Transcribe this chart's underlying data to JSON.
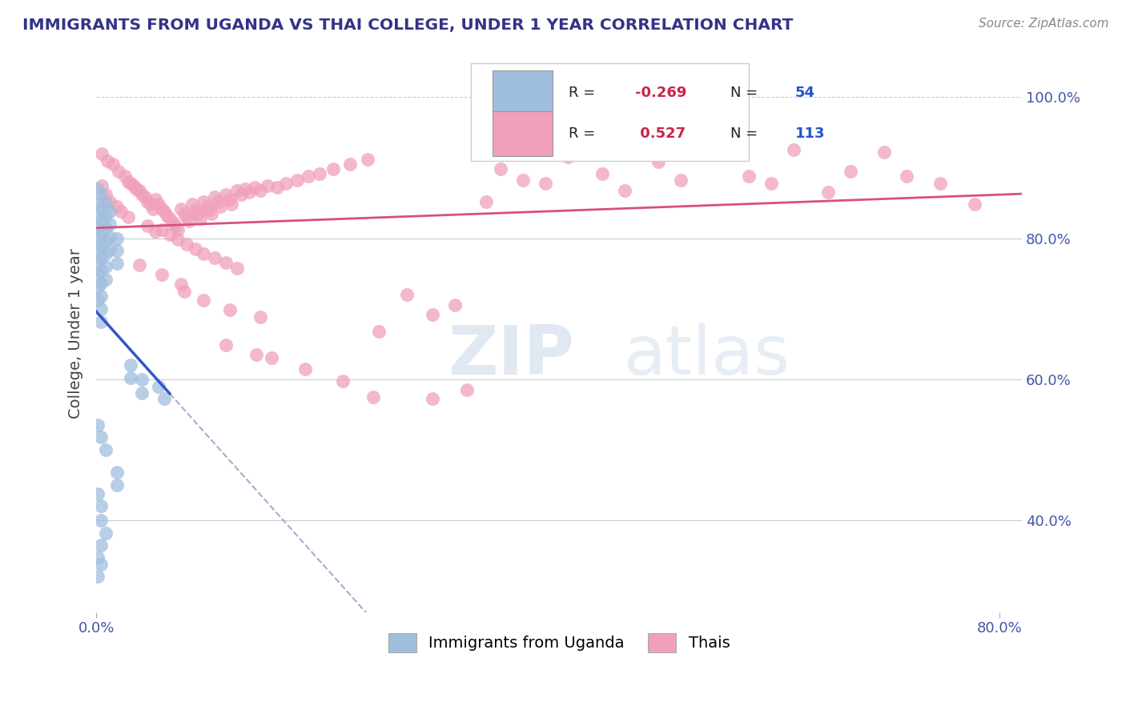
{
  "title": "IMMIGRANTS FROM UGANDA VS THAI COLLEGE, UNDER 1 YEAR CORRELATION CHART",
  "source": "Source: ZipAtlas.com",
  "ylabel": "College, Under 1 year",
  "color_uganda": "#a0bede",
  "color_thai": "#f0a0bc",
  "color_uganda_line": "#3355cc",
  "color_thai_line": "#d85080",
  "color_dashed": "#aaaacc",
  "background_color": "#ffffff",
  "xlim": [
    0.0,
    0.82
  ],
  "ylim": [
    0.27,
    1.06
  ],
  "r_uganda": -0.269,
  "n_uganda": 54,
  "r_thai": 0.527,
  "n_thai": 113,
  "legend_labels": [
    "Immigrants from Uganda",
    "Thais"
  ],
  "uganda_points": [
    [
      0.001,
      0.87
    ],
    [
      0.001,
      0.85
    ],
    [
      0.001,
      0.832
    ],
    [
      0.001,
      0.815
    ],
    [
      0.001,
      0.798
    ],
    [
      0.001,
      0.782
    ],
    [
      0.001,
      0.765
    ],
    [
      0.001,
      0.748
    ],
    [
      0.001,
      0.73
    ],
    [
      0.001,
      0.712
    ],
    [
      0.004,
      0.862
    ],
    [
      0.004,
      0.844
    ],
    [
      0.004,
      0.826
    ],
    [
      0.004,
      0.808
    ],
    [
      0.004,
      0.79
    ],
    [
      0.004,
      0.772
    ],
    [
      0.004,
      0.754
    ],
    [
      0.004,
      0.736
    ],
    [
      0.004,
      0.718
    ],
    [
      0.004,
      0.7
    ],
    [
      0.004,
      0.682
    ],
    [
      0.008,
      0.85
    ],
    [
      0.008,
      0.832
    ],
    [
      0.008,
      0.814
    ],
    [
      0.008,
      0.796
    ],
    [
      0.008,
      0.778
    ],
    [
      0.008,
      0.76
    ],
    [
      0.008,
      0.742
    ],
    [
      0.012,
      0.838
    ],
    [
      0.012,
      0.82
    ],
    [
      0.012,
      0.802
    ],
    [
      0.012,
      0.784
    ],
    [
      0.018,
      0.8
    ],
    [
      0.018,
      0.782
    ],
    [
      0.018,
      0.764
    ],
    [
      0.03,
      0.62
    ],
    [
      0.03,
      0.602
    ],
    [
      0.04,
      0.6
    ],
    [
      0.04,
      0.58
    ],
    [
      0.055,
      0.59
    ],
    [
      0.06,
      0.572
    ],
    [
      0.001,
      0.535
    ],
    [
      0.004,
      0.518
    ],
    [
      0.008,
      0.5
    ],
    [
      0.018,
      0.468
    ],
    [
      0.018,
      0.45
    ],
    [
      0.004,
      0.4
    ],
    [
      0.008,
      0.382
    ],
    [
      0.001,
      0.438
    ],
    [
      0.004,
      0.42
    ],
    [
      0.001,
      0.348
    ],
    [
      0.004,
      0.365
    ],
    [
      0.004,
      0.338
    ],
    [
      0.001,
      0.32
    ]
  ],
  "thai_points": [
    [
      0.005,
      0.92
    ],
    [
      0.01,
      0.91
    ],
    [
      0.015,
      0.905
    ],
    [
      0.02,
      0.895
    ],
    [
      0.025,
      0.888
    ],
    [
      0.028,
      0.88
    ],
    [
      0.03,
      0.878
    ],
    [
      0.033,
      0.875
    ],
    [
      0.035,
      0.87
    ],
    [
      0.038,
      0.868
    ],
    [
      0.04,
      0.862
    ],
    [
      0.043,
      0.858
    ],
    [
      0.045,
      0.852
    ],
    [
      0.048,
      0.848
    ],
    [
      0.05,
      0.842
    ],
    [
      0.052,
      0.855
    ],
    [
      0.055,
      0.848
    ],
    [
      0.058,
      0.842
    ],
    [
      0.06,
      0.838
    ],
    [
      0.062,
      0.832
    ],
    [
      0.065,
      0.828
    ],
    [
      0.068,
      0.822
    ],
    [
      0.07,
      0.818
    ],
    [
      0.072,
      0.812
    ],
    [
      0.075,
      0.842
    ],
    [
      0.078,
      0.835
    ],
    [
      0.08,
      0.83
    ],
    [
      0.082,
      0.825
    ],
    [
      0.085,
      0.848
    ],
    [
      0.088,
      0.84
    ],
    [
      0.09,
      0.835
    ],
    [
      0.092,
      0.828
    ],
    [
      0.095,
      0.852
    ],
    [
      0.098,
      0.845
    ],
    [
      0.1,
      0.84
    ],
    [
      0.102,
      0.835
    ],
    [
      0.105,
      0.858
    ],
    [
      0.108,
      0.852
    ],
    [
      0.11,
      0.845
    ],
    [
      0.115,
      0.862
    ],
    [
      0.118,
      0.855
    ],
    [
      0.12,
      0.848
    ],
    [
      0.125,
      0.868
    ],
    [
      0.128,
      0.862
    ],
    [
      0.132,
      0.87
    ],
    [
      0.135,
      0.865
    ],
    [
      0.14,
      0.872
    ],
    [
      0.145,
      0.868
    ],
    [
      0.152,
      0.875
    ],
    [
      0.16,
      0.872
    ],
    [
      0.168,
      0.878
    ],
    [
      0.178,
      0.882
    ],
    [
      0.188,
      0.888
    ],
    [
      0.198,
      0.892
    ],
    [
      0.21,
      0.898
    ],
    [
      0.225,
      0.905
    ],
    [
      0.24,
      0.912
    ],
    [
      0.058,
      0.812
    ],
    [
      0.065,
      0.805
    ],
    [
      0.072,
      0.798
    ],
    [
      0.08,
      0.792
    ],
    [
      0.088,
      0.785
    ],
    [
      0.095,
      0.778
    ],
    [
      0.105,
      0.772
    ],
    [
      0.115,
      0.765
    ],
    [
      0.125,
      0.758
    ],
    [
      0.045,
      0.818
    ],
    [
      0.052,
      0.81
    ],
    [
      0.022,
      0.838
    ],
    [
      0.028,
      0.83
    ],
    [
      0.012,
      0.852
    ],
    [
      0.018,
      0.845
    ],
    [
      0.008,
      0.862
    ],
    [
      0.005,
      0.875
    ],
    [
      0.078,
      0.725
    ],
    [
      0.095,
      0.712
    ],
    [
      0.118,
      0.698
    ],
    [
      0.145,
      0.688
    ],
    [
      0.058,
      0.748
    ],
    [
      0.075,
      0.735
    ],
    [
      0.038,
      0.762
    ],
    [
      0.25,
      0.668
    ],
    [
      0.275,
      0.72
    ],
    [
      0.298,
      0.692
    ],
    [
      0.318,
      0.705
    ],
    [
      0.345,
      0.852
    ],
    [
      0.358,
      0.898
    ],
    [
      0.378,
      0.882
    ],
    [
      0.398,
      0.878
    ],
    [
      0.418,
      0.915
    ],
    [
      0.448,
      0.892
    ],
    [
      0.468,
      0.868
    ],
    [
      0.498,
      0.908
    ],
    [
      0.518,
      0.882
    ],
    [
      0.548,
      0.922
    ],
    [
      0.578,
      0.888
    ],
    [
      0.598,
      0.878
    ],
    [
      0.618,
      0.925
    ],
    [
      0.648,
      0.865
    ],
    [
      0.668,
      0.895
    ],
    [
      0.698,
      0.922
    ],
    [
      0.718,
      0.888
    ],
    [
      0.748,
      0.878
    ],
    [
      0.778,
      0.848
    ],
    [
      0.155,
      0.63
    ],
    [
      0.185,
      0.615
    ],
    [
      0.218,
      0.598
    ],
    [
      0.245,
      0.575
    ],
    [
      0.115,
      0.648
    ],
    [
      0.142,
      0.635
    ],
    [
      0.298,
      0.572
    ],
    [
      0.328,
      0.585
    ]
  ]
}
